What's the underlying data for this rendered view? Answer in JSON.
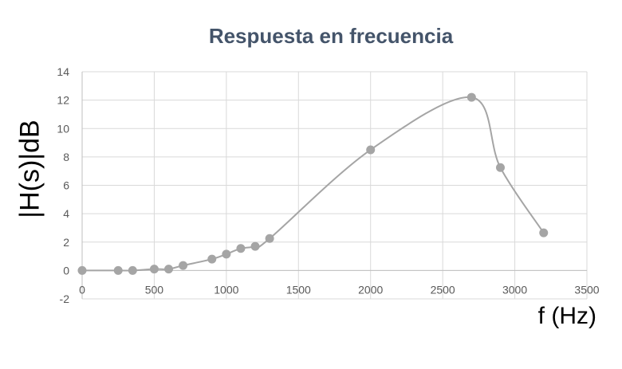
{
  "chart_data": {
    "type": "line",
    "title": "Respuesta en frecuencia",
    "xlabel": "f (Hz)",
    "ylabel": "|H(s)|dB",
    "xlim": [
      0,
      3500
    ],
    "ylim": [
      -2,
      14
    ],
    "xticks": [
      0,
      500,
      1000,
      1500,
      2000,
      2500,
      3000,
      3500
    ],
    "yticks": [
      -2,
      0,
      2,
      4,
      6,
      8,
      10,
      12,
      14
    ],
    "grid": true,
    "smooth": true,
    "colors": {
      "series": "#a5a5a5",
      "grid": "#d9d9d9",
      "title": "#44546a"
    },
    "series": [
      {
        "x": [
          0,
          250,
          350,
          500,
          600,
          700,
          900,
          1000,
          1100,
          1200,
          1300,
          2000,
          2700,
          2900,
          3200
        ],
        "y": [
          0,
          0,
          0,
          0.1,
          0.1,
          0.35,
          0.8,
          1.15,
          1.55,
          1.7,
          2.25,
          8.5,
          12.2,
          7.25,
          2.65
        ]
      }
    ]
  }
}
